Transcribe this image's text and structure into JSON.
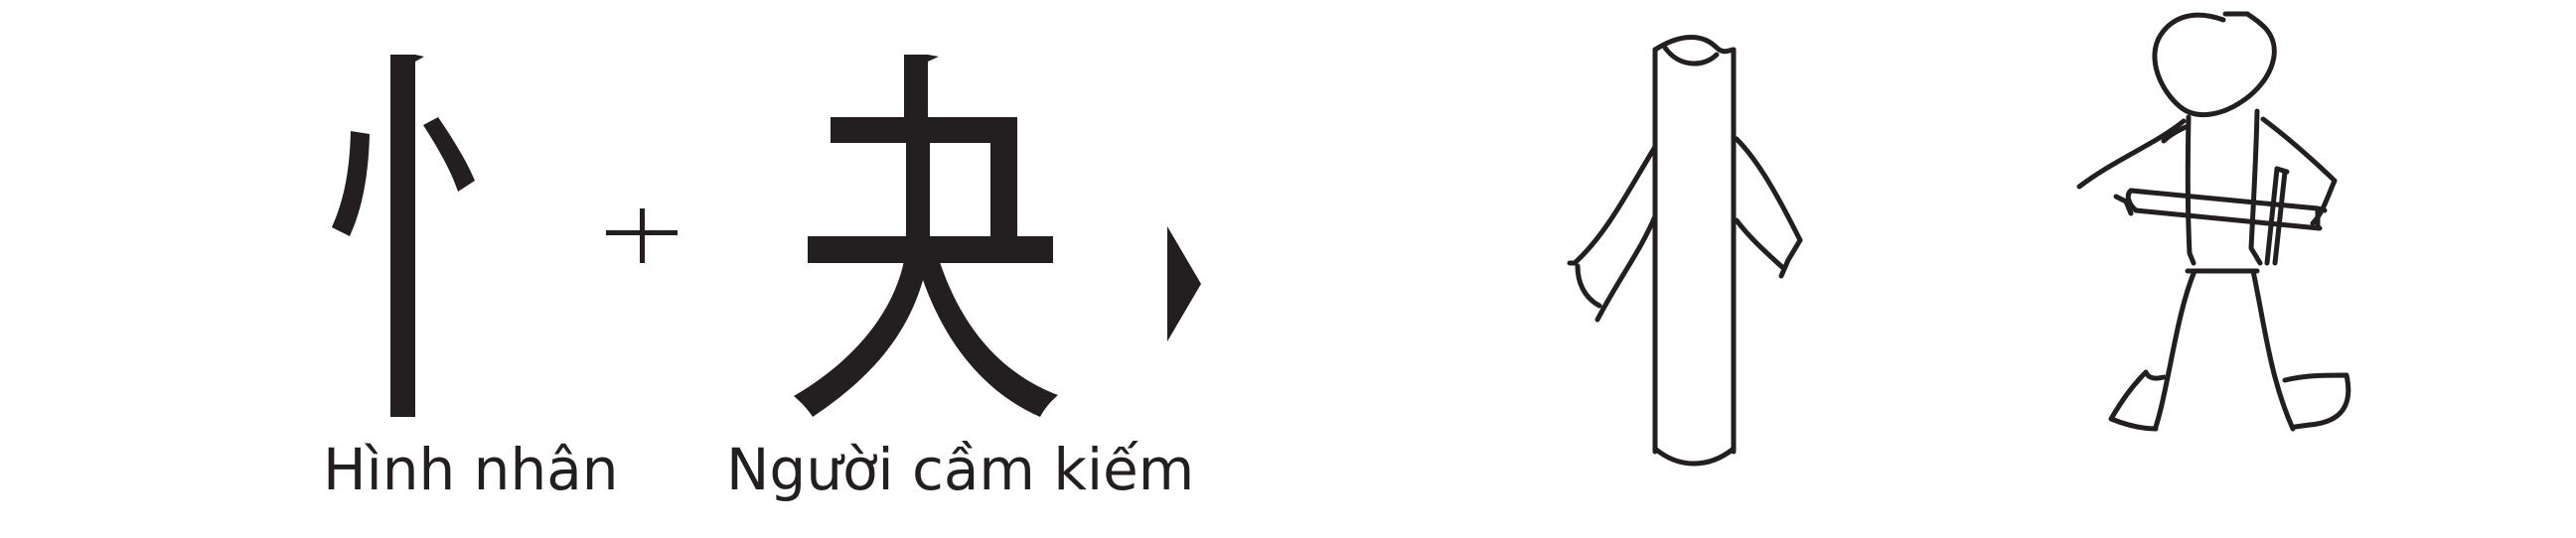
{
  "labels": {
    "left": "Hình nhân",
    "right": "Người cầm kiếm"
  },
  "operators": {
    "plus": "+"
  },
  "icons": [
    "character-radical-icon",
    "character-component-icon",
    "arrow-right-icon",
    "post-figure-icon",
    "swordsman-figure-icon"
  ],
  "colors": {
    "ink": "#231f20",
    "background": "#ffffff"
  }
}
